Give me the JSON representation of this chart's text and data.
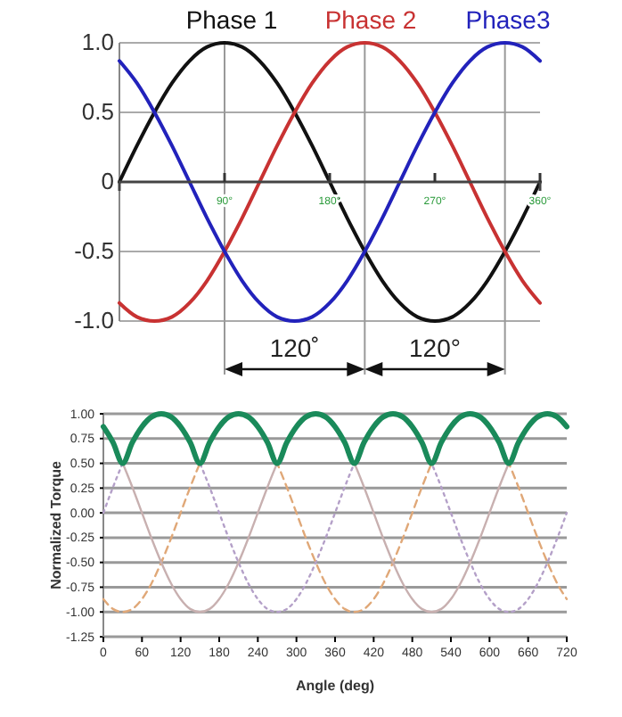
{
  "chart_data": [
    {
      "type": "line",
      "x": [
        0,
        15,
        30,
        45,
        60,
        75,
        90,
        105,
        120,
        135,
        150,
        165,
        180,
        195,
        210,
        225,
        240,
        255,
        270,
        285,
        300,
        315,
        330,
        345,
        360
      ],
      "series": [
        {
          "name": "Phase 1",
          "color": "#111111",
          "values": [
            0,
            0.26,
            0.5,
            0.71,
            0.87,
            0.97,
            1,
            0.97,
            0.87,
            0.71,
            0.5,
            0.26,
            0,
            -0.26,
            -0.5,
            -0.71,
            -0.87,
            -0.97,
            -1,
            -0.97,
            -0.87,
            -0.71,
            -0.5,
            -0.26,
            0
          ]
        },
        {
          "name": "Phase 2",
          "color": "#c83232",
          "values": [
            -0.87,
            -0.97,
            -1,
            -0.97,
            -0.87,
            -0.71,
            -0.5,
            -0.26,
            0,
            0.26,
            0.5,
            0.71,
            0.87,
            0.97,
            1,
            0.97,
            0.87,
            0.71,
            0.5,
            0.26,
            0,
            -0.26,
            -0.5,
            -0.71,
            -0.87
          ]
        },
        {
          "name": "Phase3",
          "color": "#2222bb",
          "values": [
            0.87,
            0.71,
            0.5,
            0.26,
            0,
            -0.26,
            -0.5,
            -0.71,
            -0.87,
            -0.97,
            -1,
            -0.97,
            -0.87,
            -0.71,
            -0.5,
            -0.26,
            0,
            0.26,
            0.5,
            0.71,
            0.87,
            0.97,
            1,
            0.97,
            0.87
          ]
        }
      ],
      "xlim": [
        0,
        360
      ],
      "xticks": [
        {
          "value": 90,
          "label": "90°"
        },
        {
          "value": 180,
          "label": "180°"
        },
        {
          "value": 270,
          "label": "270°"
        },
        {
          "value": 360,
          "label": "360°"
        }
      ],
      "ylim": [
        -1,
        1
      ],
      "yticks": [
        {
          "value": -1,
          "label": "-1.0"
        },
        -0.5,
        0,
        0.5,
        {
          "value": 1,
          "label": "1.0"
        }
      ],
      "grid": "y",
      "legend": "top",
      "line_style": "solid",
      "ref_lines": [
        {
          "axis": "x",
          "value": 90,
          "color": "#999999"
        },
        {
          "axis": "x",
          "value": 210,
          "color": "#999999"
        },
        {
          "axis": "x",
          "value": 330,
          "color": "#999999"
        }
      ],
      "annotations": [
        "120˚",
        "120°"
      ]
    },
    {
      "type": "line",
      "x": [
        0,
        15,
        30,
        45,
        60,
        75,
        90,
        105,
        120,
        135,
        150,
        165,
        180,
        195,
        210,
        225,
        240,
        255,
        270,
        285,
        300,
        315,
        330,
        345,
        360,
        375,
        390,
        405,
        420,
        435,
        450,
        465,
        480,
        495,
        510,
        525,
        540,
        555,
        570,
        585,
        600,
        615,
        630,
        645,
        660,
        675,
        690,
        705,
        720
      ],
      "series": [
        {
          "color": "#b4a0c8",
          "line_style": "dotted",
          "values": [
            0,
            0.26,
            0.5,
            0.71,
            0.87,
            0.97,
            1,
            0.97,
            0.87,
            0.71,
            0.5,
            0.26,
            0,
            -0.26,
            -0.5,
            -0.71,
            -0.87,
            -0.97,
            -1,
            -0.97,
            -0.87,
            -0.71,
            -0.5,
            -0.26,
            0,
            0.26,
            0.5,
            0.71,
            0.87,
            0.97,
            1,
            0.97,
            0.87,
            0.71,
            0.5,
            0.26,
            0,
            -0.26,
            -0.5,
            -0.71,
            -0.87,
            -0.97,
            -1,
            -0.97,
            -0.87,
            -0.71,
            -0.5,
            -0.26,
            0
          ]
        },
        {
          "color": "#e0a878",
          "line_style": "dashed",
          "values": [
            -0.87,
            -0.97,
            -1,
            -0.97,
            -0.87,
            -0.71,
            -0.5,
            -0.26,
            0,
            0.26,
            0.5,
            0.71,
            0.87,
            0.97,
            1,
            0.97,
            0.87,
            0.71,
            0.5,
            0.26,
            0,
            -0.26,
            -0.5,
            -0.71,
            -0.87,
            -0.97,
            -1,
            -0.97,
            -0.87,
            -0.71,
            -0.5,
            -0.26,
            0,
            0.26,
            0.5,
            0.71,
            0.87,
            0.97,
            1,
            0.97,
            0.87,
            0.71,
            0.5,
            0.26,
            0,
            -0.26,
            -0.5,
            -0.71,
            -0.87
          ]
        },
        {
          "color": "#c8b0b0",
          "line_style": "solid",
          "values": [
            null,
            0.71,
            0.5,
            0.26,
            0,
            -0.26,
            -0.5,
            -0.71,
            -0.87,
            -0.97,
            -1,
            -0.97,
            -0.87,
            -0.71,
            -0.5,
            -0.26,
            0,
            0.26,
            0.5,
            0.71,
            0.87,
            0.97,
            1,
            0.97,
            0.87,
            0.71,
            0.5,
            0.26,
            0,
            -0.26,
            -0.5,
            -0.71,
            -0.87,
            -0.97,
            -1,
            -0.97,
            -0.87,
            -0.71,
            -0.5,
            -0.26,
            0,
            0.26,
            0.5,
            0.71,
            0.87,
            0.97,
            1,
            0.97,
            0.87
          ]
        },
        {
          "color": "#1a8a5a",
          "line_style": "solid",
          "values": [
            0.87,
            0.71,
            0.5,
            0.71,
            0.87,
            0.97,
            1,
            0.97,
            0.87,
            0.71,
            0.5,
            0.71,
            0.87,
            0.97,
            1,
            0.97,
            0.87,
            0.71,
            0.5,
            0.71,
            0.87,
            0.97,
            1,
            0.97,
            0.87,
            0.71,
            0.5,
            0.71,
            0.87,
            0.97,
            1,
            0.97,
            0.87,
            0.71,
            0.5,
            0.71,
            0.87,
            0.97,
            1,
            0.97,
            0.87,
            0.71,
            0.5,
            0.71,
            0.87,
            0.97,
            1,
            0.97,
            0.87
          ]
        }
      ],
      "xlim": [
        0,
        720
      ],
      "xticks": [
        0,
        60,
        120,
        180,
        240,
        300,
        360,
        420,
        480,
        540,
        600,
        660,
        720
      ],
      "ylim": [
        -1.25,
        1
      ],
      "yticks": [
        {
          "value": -1.25,
          "label": "-1.25"
        },
        {
          "value": -1,
          "label": "-1.00"
        },
        {
          "value": -0.75,
          "label": "-0.75"
        },
        {
          "value": -0.5,
          "label": "-0.50"
        },
        {
          "value": -0.25,
          "label": "-0.25"
        },
        {
          "value": 0,
          "label": "0.00"
        },
        {
          "value": 0.25,
          "label": "0.25"
        },
        {
          "value": 0.5,
          "label": "0.50"
        },
        {
          "value": 0.75,
          "label": "0.75"
        },
        {
          "value": 1,
          "label": "1.00"
        }
      ],
      "grid": "y",
      "xlabel": "Angle (deg)",
      "ylabel": "Normalized Torque"
    }
  ]
}
